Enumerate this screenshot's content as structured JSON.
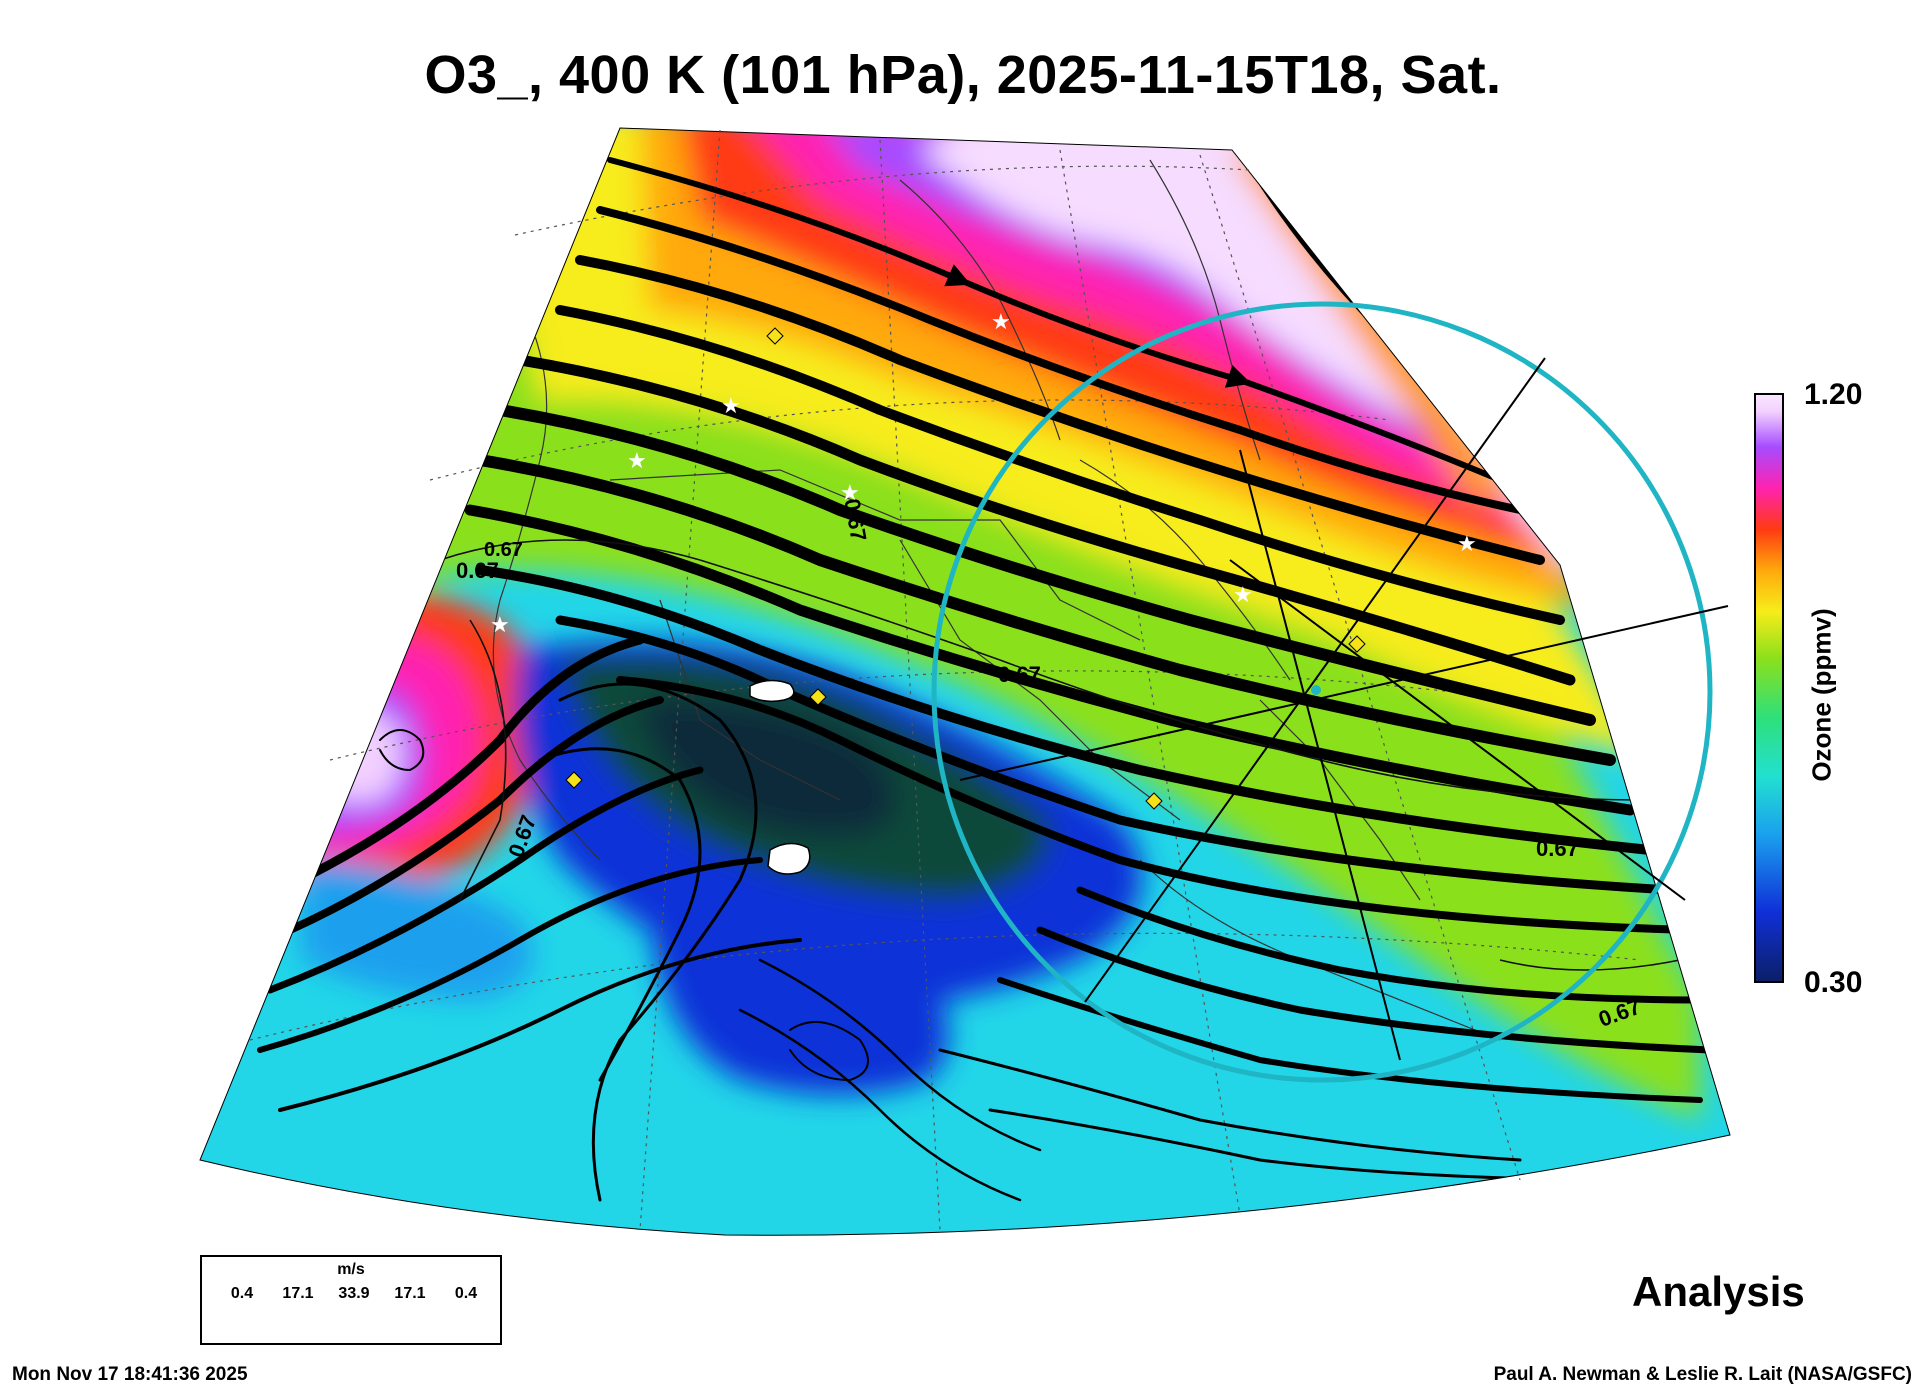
{
  "title": "O3_, 400 K (101 hPa), 2025-11-15T18, Sat.",
  "colorbar": {
    "max_label": "1.20",
    "min_label": "0.30",
    "label": "Ozone (ppmv)",
    "colors": [
      "#0b1f66",
      "#1030d8",
      "#1aa0ee",
      "#22e0d0",
      "#2ee07a",
      "#8be01c",
      "#f7ec1a",
      "#ffa90c",
      "#ff3a12",
      "#ff23b0",
      "#a64cff",
      "#f2d0ff",
      "#fbe8ff"
    ]
  },
  "wind_legend": {
    "unit": "m/s",
    "values": [
      "0.4",
      "17.1",
      "33.9",
      "17.1",
      "0.4"
    ]
  },
  "contour_labels": [
    "0.67",
    "0.67",
    "0.67",
    "0.67",
    "0.67",
    "0.67",
    "0.67"
  ],
  "analysis_label": "Analysis",
  "timestamp": "Mon Nov 17 18:41:36 2025",
  "credits": "Paul A. Newman & Leslie R. Lait (NASA/GSFC)"
}
